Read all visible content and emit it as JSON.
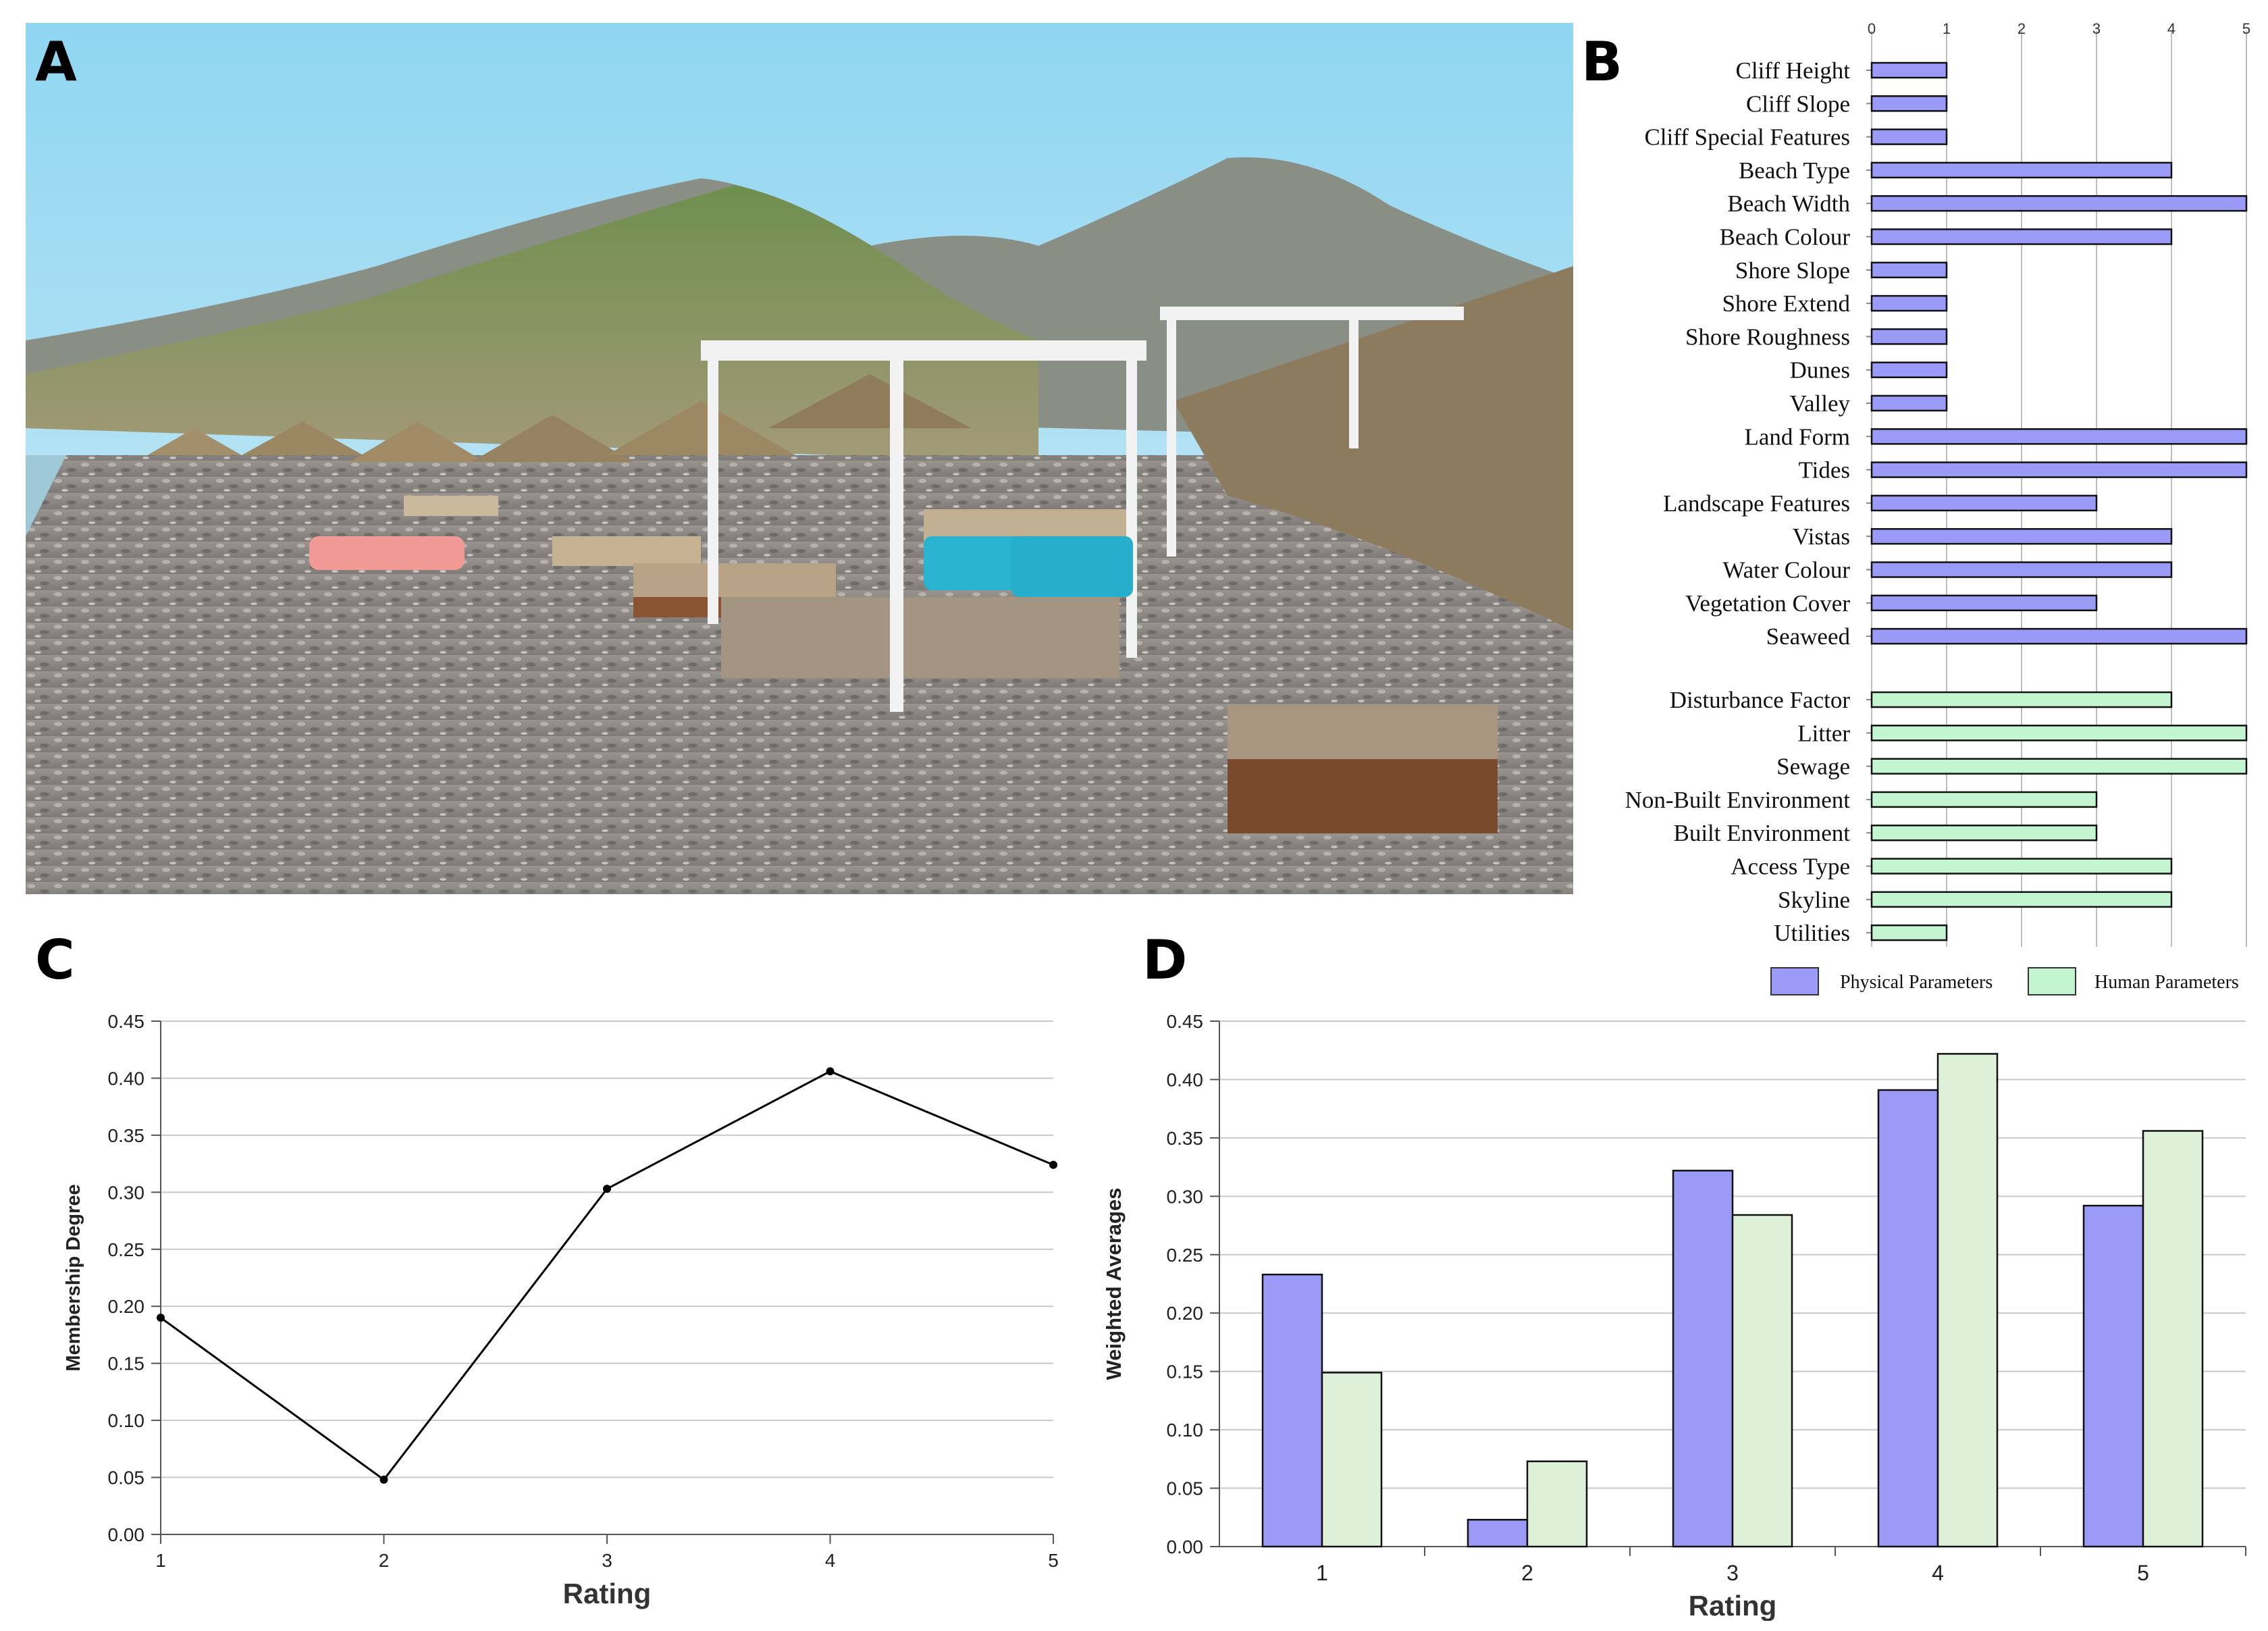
{
  "panels": {
    "a": "A",
    "b": "B",
    "c": "C",
    "d": "D"
  },
  "colors": {
    "physical": "#9a9af7",
    "human": "#c2f5d0",
    "human_d": "#ddf0d8",
    "line": "#000000",
    "grid": "#c8c8c8"
  },
  "chart_data": [
    {
      "id": "B",
      "type": "bar",
      "orientation": "horizontal",
      "xlim": [
        0,
        5
      ],
      "xticks": [
        "0",
        "1",
        "2",
        "3",
        "4",
        "5"
      ],
      "physical": {
        "categories": [
          "Cliff Height",
          "Cliff Slope",
          "Cliff Special Features",
          "Beach Type",
          "Beach Width",
          "Beach Colour",
          "Shore Slope",
          "Shore Extend",
          "Shore Roughness",
          "Dunes",
          "Valley",
          "Land Form",
          "Tides",
          "Landscape Features",
          "Vistas",
          "Water Colour",
          "Vegetation Cover",
          "Seaweed"
        ],
        "values": [
          1,
          1,
          1,
          4,
          5,
          4,
          1,
          1,
          1,
          1,
          1,
          5,
          5,
          3,
          4,
          4,
          3,
          5
        ]
      },
      "human": {
        "categories": [
          "Disturbance Factor",
          "Litter",
          "Sewage",
          "Non-Built Environment",
          "Built Environment",
          "Access Type",
          "Skyline",
          "Utilities"
        ],
        "values": [
          4,
          5,
          5,
          3,
          3,
          4,
          4,
          1
        ]
      },
      "legend": [
        "Physical Parameters",
        "Human Parameters"
      ],
      "legend_position": "bottom-right"
    },
    {
      "id": "C",
      "type": "line",
      "x": [
        1,
        2,
        3,
        4,
        5
      ],
      "y": [
        0.19,
        0.048,
        0.303,
        0.406,
        0.324
      ],
      "xlabel": "Rating",
      "ylabel": "Membership Degree",
      "ylim": [
        0,
        0.45
      ],
      "yticks": [
        "0.00",
        "0.05",
        "0.10",
        "0.15",
        "0.20",
        "0.25",
        "0.30",
        "0.35",
        "0.40",
        "0.45"
      ],
      "xticks": [
        "1",
        "2",
        "3",
        "4",
        "5"
      ],
      "grid": true
    },
    {
      "id": "D",
      "type": "bar",
      "categories": [
        "1",
        "2",
        "3",
        "4",
        "5"
      ],
      "series": [
        {
          "values": [
            0.233,
            0.023,
            0.322,
            0.391,
            0.292
          ]
        },
        {
          "values": [
            0.149,
            0.073,
            0.284,
            0.422,
            0.356
          ]
        }
      ],
      "xlabel": "Rating",
      "ylabel": "Weighted Averages",
      "ylim": [
        0,
        0.45
      ],
      "yticks": [
        "0.00",
        "0.05",
        "0.10",
        "0.15",
        "0.20",
        "0.25",
        "0.30",
        "0.35",
        "0.40",
        "0.45"
      ],
      "grid": true
    }
  ]
}
